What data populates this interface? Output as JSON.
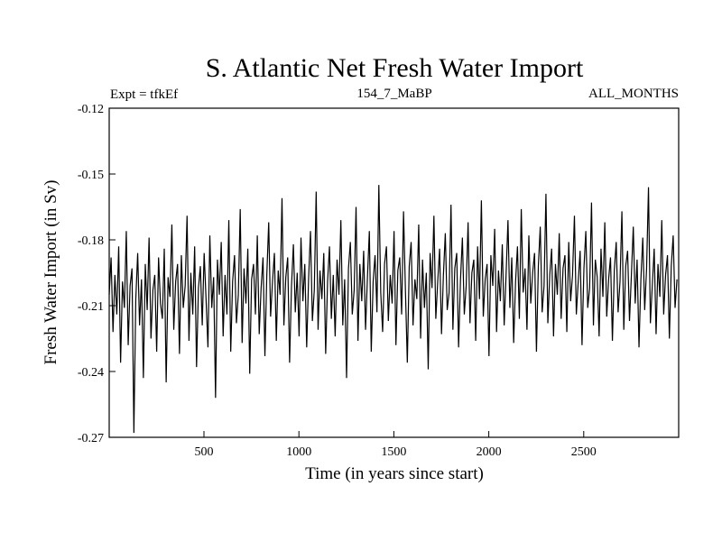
{
  "chart_data": {
    "type": "line",
    "title": "S. Atlantic Net Fresh Water Import",
    "header_left": "Expt = tfkEf",
    "header_center": "154_7_MaBP",
    "header_right": "ALL_MONTHS",
    "xlabel": "Time (in years since start)",
    "ylabel": "Fresh Water Import (in Sv)",
    "xlim": [
      1,
      3000
    ],
    "ylim": [
      -0.27,
      -0.12
    ],
    "x_ticks": [
      500,
      1000,
      1500,
      2000,
      2500
    ],
    "x_tick_labels": [
      "500",
      "1000",
      "1500",
      "2000",
      "2500"
    ],
    "y_ticks": [
      -0.27,
      -0.24,
      -0.21,
      -0.18,
      -0.15,
      -0.12
    ],
    "y_tick_labels": [
      "-0.27",
      "-0.24",
      "-0.21",
      "-0.18",
      "-0.15",
      "-0.12"
    ],
    "grid": false,
    "line_color": "#000000",
    "series": [
      {
        "start_year": 1,
        "step_years": 10,
        "values": [
          -0.205,
          -0.188,
          -0.222,
          -0.196,
          -0.214,
          -0.183,
          -0.236,
          -0.199,
          -0.211,
          -0.176,
          -0.228,
          -0.201,
          -0.193,
          -0.268,
          -0.207,
          -0.186,
          -0.219,
          -0.198,
          -0.243,
          -0.191,
          -0.212,
          -0.179,
          -0.225,
          -0.203,
          -0.196,
          -0.231,
          -0.188,
          -0.209,
          -0.216,
          -0.184,
          -0.245,
          -0.197,
          -0.206,
          -0.173,
          -0.221,
          -0.199,
          -0.191,
          -0.232,
          -0.187,
          -0.211,
          -0.201,
          -0.169,
          -0.226,
          -0.195,
          -0.214,
          -0.183,
          -0.238,
          -0.202,
          -0.192,
          -0.219,
          -0.186,
          -0.207,
          -0.229,
          -0.178,
          -0.211,
          -0.197,
          -0.252,
          -0.189,
          -0.205,
          -0.181,
          -0.224,
          -0.196,
          -0.214,
          -0.171,
          -0.231,
          -0.199,
          -0.187,
          -0.218,
          -0.205,
          -0.166,
          -0.227,
          -0.193,
          -0.209,
          -0.184,
          -0.241,
          -0.198,
          -0.191,
          -0.214,
          -0.178,
          -0.223,
          -0.202,
          -0.188,
          -0.233,
          -0.196,
          -0.172,
          -0.215,
          -0.199,
          -0.186,
          -0.226,
          -0.194,
          -0.205,
          -0.161,
          -0.219,
          -0.197,
          -0.188,
          -0.236,
          -0.201,
          -0.182,
          -0.213,
          -0.195,
          -0.224,
          -0.179,
          -0.208,
          -0.191,
          -0.229,
          -0.198,
          -0.176,
          -0.217,
          -0.203,
          -0.158,
          -0.221,
          -0.194,
          -0.207,
          -0.186,
          -0.232,
          -0.199,
          -0.183,
          -0.216,
          -0.196,
          -0.224,
          -0.189,
          -0.205,
          -0.171,
          -0.219,
          -0.198,
          -0.243,
          -0.193,
          -0.181,
          -0.214,
          -0.203,
          -0.165,
          -0.226,
          -0.191,
          -0.208,
          -0.185,
          -0.221,
          -0.197,
          -0.176,
          -0.231,
          -0.199,
          -0.187,
          -0.213,
          -0.155,
          -0.204,
          -0.222,
          -0.191,
          -0.183,
          -0.217,
          -0.196,
          -0.209,
          -0.176,
          -0.228,
          -0.194,
          -0.188,
          -0.214,
          -0.167,
          -0.203,
          -0.236,
          -0.192,
          -0.181,
          -0.219,
          -0.198,
          -0.207,
          -0.173,
          -0.225,
          -0.189,
          -0.211,
          -0.195,
          -0.239,
          -0.186,
          -0.202,
          -0.169,
          -0.216,
          -0.199,
          -0.184,
          -0.223,
          -0.196,
          -0.177,
          -0.212,
          -0.204,
          -0.164,
          -0.221,
          -0.193,
          -0.186,
          -0.229,
          -0.198,
          -0.179,
          -0.214,
          -0.201,
          -0.172,
          -0.218,
          -0.195,
          -0.189,
          -0.226,
          -0.183,
          -0.207,
          -0.162,
          -0.215,
          -0.198,
          -0.191,
          -0.233,
          -0.187,
          -0.201,
          -0.175,
          -0.222,
          -0.194,
          -0.208,
          -0.182,
          -0.219,
          -0.196,
          -0.171,
          -0.211,
          -0.188,
          -0.227,
          -0.199,
          -0.183,
          -0.216,
          -0.166,
          -0.204,
          -0.193,
          -0.221,
          -0.178,
          -0.209,
          -0.195,
          -0.186,
          -0.231,
          -0.192,
          -0.174,
          -0.213,
          -0.201,
          -0.159,
          -0.218,
          -0.196,
          -0.184,
          -0.224,
          -0.191,
          -0.205,
          -0.177,
          -0.216,
          -0.193,
          -0.187,
          -0.222,
          -0.181,
          -0.208,
          -0.196,
          -0.169,
          -0.214,
          -0.199,
          -0.185,
          -0.228,
          -0.193,
          -0.176,
          -0.211,
          -0.202,
          -0.163,
          -0.219,
          -0.189,
          -0.197,
          -0.224,
          -0.184,
          -0.206,
          -0.172,
          -0.215,
          -0.198,
          -0.188,
          -0.226,
          -0.194,
          -0.181,
          -0.213,
          -0.199,
          -0.167,
          -0.221,
          -0.192,
          -0.185,
          -0.217,
          -0.196,
          -0.174,
          -0.209,
          -0.189,
          -0.229,
          -0.198,
          -0.179,
          -0.212,
          -0.193,
          -0.156,
          -0.218,
          -0.201,
          -0.184,
          -0.223,
          -0.191,
          -0.206,
          -0.171,
          -0.214,
          -0.196,
          -0.187,
          -0.225,
          -0.192,
          -0.178,
          -0.211,
          -0.198
        ]
      }
    ]
  }
}
